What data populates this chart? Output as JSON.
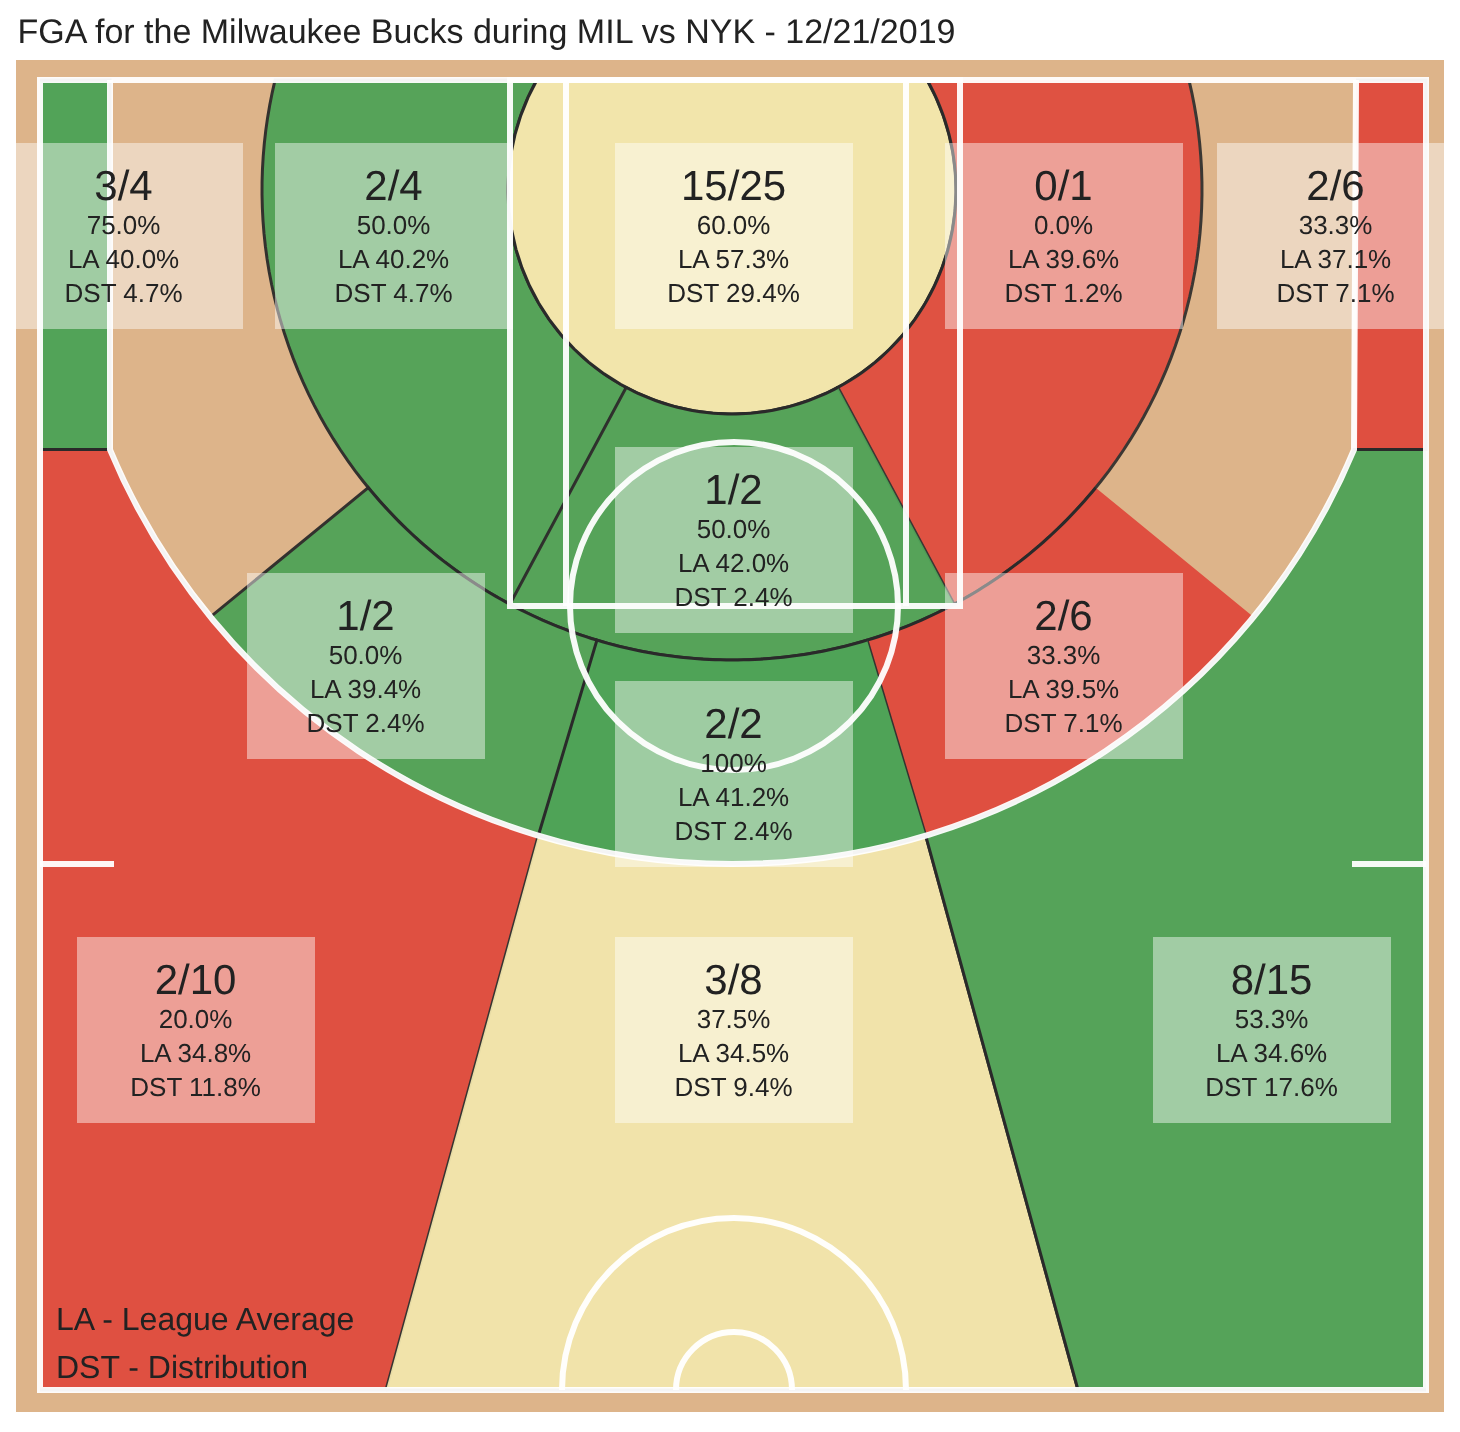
{
  "chart_data": {
    "type": "other",
    "title": "FGA for the Milwaukee Bucks during MIL vs NYK - 12/21/2019",
    "categories": [
      null,
      null,
      null,
      null,
      null,
      null,
      null,
      null,
      null,
      null,
      null,
      null
    ],
    "values": [
      75.0,
      50.0,
      60.0,
      0.0,
      33.3,
      50.0,
      50.0,
      33.3,
      100,
      20.0,
      37.5,
      53.3
    ],
    "colors": [
      "#4fa357",
      "#4fa357",
      "#f3e7ad",
      "#e0483b",
      "#e0483b",
      "#4fa357",
      "#4fa357",
      "#e0483b",
      "#4fa357",
      "#e0483b",
      "#f3e7ad",
      "#4fa357"
    ],
    "value_labels": [
      "3/4\n75.0%\nLA 40.0%\nDST 4.7%",
      "2/4\n50.0%\nLA 40.2%\nDST 4.7%",
      "15/25\n60.0%\nLA 57.3%\nDST 29.4%",
      "0/1\n0.0%\nLA 39.6%\nDST 1.2%",
      "2/6\n33.3%\nLA 37.1%\nDST 7.1%",
      "1/2\n50.0%\nLA 42.0%\nDST 2.4%",
      "1/2\n50.0%\nLA 39.4%\nDST 2.4%",
      "2/6\n33.3%\nLA 39.5%\nDST 7.1%",
      "2/2\n100%\nLA 41.2%\nDST 2.4%",
      "2/10\n20.0%\nLA 34.8%\nDST 11.8%",
      "3/8\n37.5%\nLA 34.5%\nDST 9.4%",
      "8/15\n53.3%\nLA 34.6%\nDST 17.6%"
    ],
    "annotations": [
      "LA - League Average",
      "DST - Distribution"
    ]
  }
}
